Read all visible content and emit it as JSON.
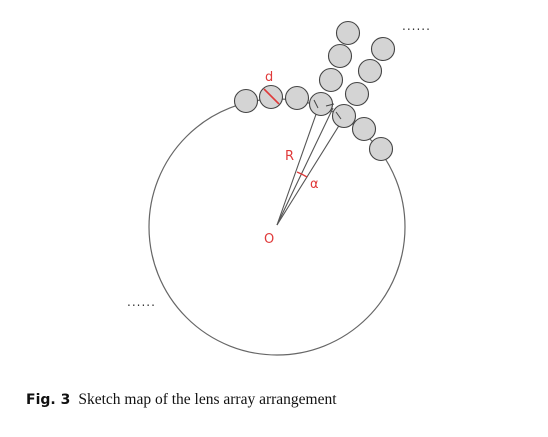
{
  "diagram": {
    "labels": {
      "d": "d",
      "R": "R",
      "alpha": "α",
      "origin": "O",
      "ellipsis_top": "......",
      "ellipsis_left": "......"
    }
  },
  "caption": {
    "fig_label": "Fig. 3",
    "text": "Sketch map of the lens array arrangement"
  }
}
